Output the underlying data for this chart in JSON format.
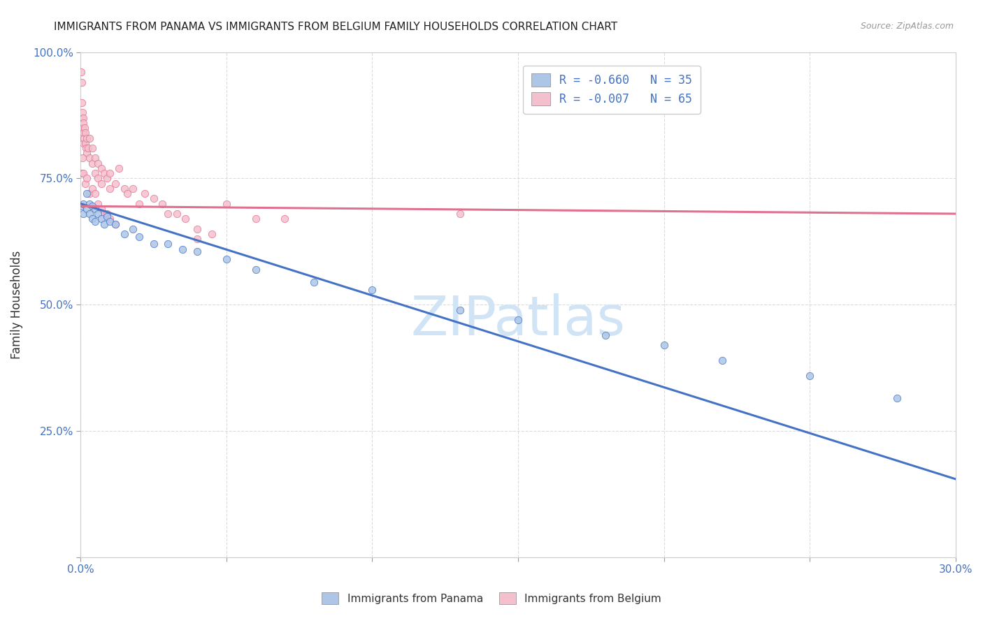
{
  "title": "IMMIGRANTS FROM PANAMA VS IMMIGRANTS FROM BELGIUM FAMILY HOUSEHOLDS CORRELATION CHART",
  "source": "Source: ZipAtlas.com",
  "ylabel": "Family Households",
  "x_min": 0.0,
  "x_max": 0.3,
  "y_min": 0.0,
  "y_max": 1.0,
  "x_ticks": [
    0.0,
    0.05,
    0.1,
    0.15,
    0.2,
    0.25,
    0.3
  ],
  "x_tick_labels": [
    "0.0%",
    "",
    "",
    "",
    "",
    "",
    "30.0%"
  ],
  "y_ticks": [
    0.0,
    0.25,
    0.5,
    0.75,
    1.0
  ],
  "y_tick_labels": [
    "",
    "25.0%",
    "50.0%",
    "75.0%",
    "100.0%"
  ],
  "legend_entry1": "R = -0.660   N = 35",
  "legend_entry2": "R = -0.007   N = 65",
  "legend_color1": "#adc6e8",
  "legend_color2": "#f5c0ce",
  "scatter_panama_color": "#adc6e8",
  "scatter_belgium_color": "#f5c0ce",
  "trendline_panama_color": "#4472c4",
  "trendline_belgium_color": "#e07090",
  "watermark_color": "#d0e4f5",
  "background_color": "#ffffff",
  "grid_color": "#d8d8d8",
  "panama_x": [
    0.0005,
    0.001,
    0.001,
    0.002,
    0.002,
    0.003,
    0.003,
    0.004,
    0.004,
    0.005,
    0.005,
    0.006,
    0.007,
    0.008,
    0.009,
    0.01,
    0.012,
    0.015,
    0.018,
    0.02,
    0.025,
    0.03,
    0.035,
    0.04,
    0.05,
    0.06,
    0.08,
    0.1,
    0.13,
    0.15,
    0.18,
    0.2,
    0.22,
    0.25,
    0.28
  ],
  "panama_y": [
    0.695,
    0.7,
    0.68,
    0.72,
    0.69,
    0.7,
    0.68,
    0.695,
    0.67,
    0.69,
    0.665,
    0.68,
    0.67,
    0.66,
    0.675,
    0.665,
    0.66,
    0.64,
    0.65,
    0.635,
    0.62,
    0.62,
    0.61,
    0.605,
    0.59,
    0.57,
    0.545,
    0.53,
    0.49,
    0.47,
    0.44,
    0.42,
    0.39,
    0.36,
    0.315
  ],
  "belgium_x": [
    0.0002,
    0.0003,
    0.0004,
    0.0005,
    0.0006,
    0.0007,
    0.0008,
    0.0009,
    0.001,
    0.001,
    0.0012,
    0.0013,
    0.0015,
    0.0016,
    0.0018,
    0.002,
    0.002,
    0.0025,
    0.003,
    0.003,
    0.004,
    0.004,
    0.005,
    0.005,
    0.006,
    0.006,
    0.007,
    0.007,
    0.008,
    0.009,
    0.01,
    0.01,
    0.012,
    0.013,
    0.015,
    0.016,
    0.018,
    0.02,
    0.022,
    0.025,
    0.028,
    0.03,
    0.033,
    0.036,
    0.04,
    0.04,
    0.045,
    0.05,
    0.06,
    0.07,
    0.0004,
    0.0006,
    0.001,
    0.0015,
    0.002,
    0.003,
    0.004,
    0.005,
    0.006,
    0.007,
    0.008,
    0.009,
    0.01,
    0.012,
    0.13
  ],
  "belgium_y": [
    0.96,
    0.94,
    0.9,
    0.87,
    0.85,
    0.88,
    0.87,
    0.86,
    0.84,
    0.82,
    0.83,
    0.85,
    0.82,
    0.84,
    0.81,
    0.83,
    0.8,
    0.81,
    0.83,
    0.79,
    0.81,
    0.78,
    0.79,
    0.76,
    0.78,
    0.75,
    0.77,
    0.74,
    0.76,
    0.75,
    0.76,
    0.73,
    0.74,
    0.77,
    0.73,
    0.72,
    0.73,
    0.7,
    0.72,
    0.71,
    0.7,
    0.68,
    0.68,
    0.67,
    0.63,
    0.65,
    0.64,
    0.7,
    0.67,
    0.67,
    0.76,
    0.79,
    0.76,
    0.74,
    0.75,
    0.72,
    0.73,
    0.72,
    0.7,
    0.69,
    0.68,
    0.68,
    0.67,
    0.66,
    0.68
  ],
  "panama_trendline_x0": 0.0,
  "panama_trendline_y0": 0.7,
  "panama_trendline_x1": 0.3,
  "panama_trendline_y1": 0.155,
  "belgium_trendline_x0": 0.0,
  "belgium_trendline_y0": 0.695,
  "belgium_trendline_x1": 0.3,
  "belgium_trendline_y1": 0.68
}
